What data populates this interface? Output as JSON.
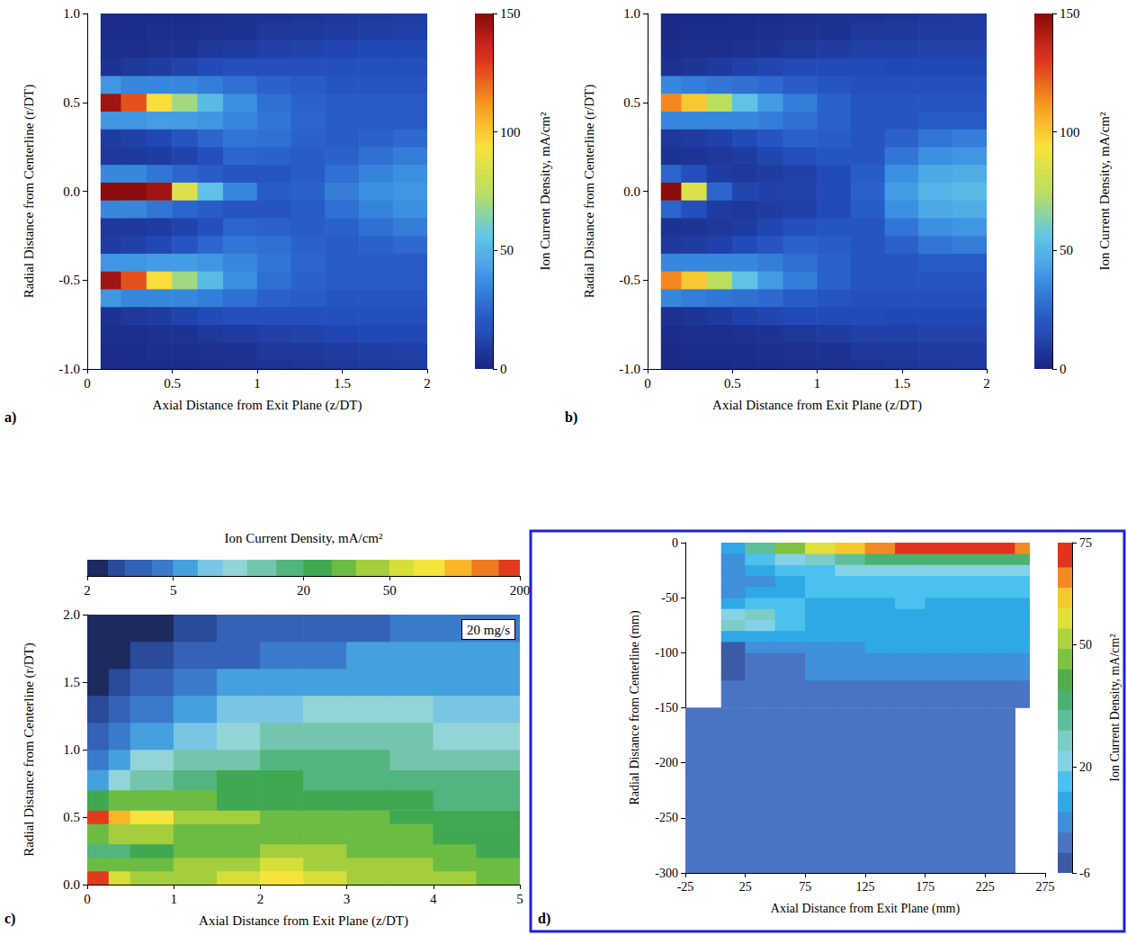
{
  "chart_data": [
    {
      "type": "heatmap",
      "panel": "a)",
      "x_label": "Axial Distance from Exit Plane (z/DT)",
      "y_label": "Radial Distance from Centerline (r/DT)",
      "xlim": [
        0,
        2
      ],
      "ylim": [
        -1,
        1
      ],
      "xticks": [
        0,
        0.5,
        1,
        1.5,
        2
      ],
      "yticks": [
        {
          "value": -1,
          "label": "-1.0"
        },
        -0.5,
        {
          "value": 0,
          "label": "0.0"
        },
        0.5,
        {
          "value": 1,
          "label": "1.0"
        }
      ],
      "x_edges": [
        0.08,
        0.2,
        0.35,
        0.5,
        0.65,
        0.8,
        1.0,
        1.2,
        1.4,
        1.6,
        1.8,
        2.0
      ],
      "y_edges": [
        -1,
        -0.95,
        -0.85,
        -0.75,
        -0.65,
        -0.55,
        -0.45,
        -0.35,
        -0.25,
        -0.15,
        -0.05,
        0.05,
        0.15,
        0.25,
        0.35,
        0.45,
        0.55,
        0.65,
        0.75,
        0.85,
        0.95,
        1
      ],
      "z": [
        [
          3,
          3,
          3,
          3,
          4,
          5,
          6,
          7,
          8,
          9,
          10
        ],
        [
          3,
          3,
          4,
          4,
          5,
          6,
          8,
          9,
          10,
          11,
          12
        ],
        [
          4,
          4,
          5,
          6,
          8,
          10,
          12,
          13,
          14,
          15,
          15
        ],
        [
          6,
          8,
          10,
          13,
          16,
          18,
          18,
          18,
          18,
          18,
          18
        ],
        [
          40,
          35,
          35,
          35,
          32,
          28,
          24,
          22,
          20,
          20,
          20
        ],
        [
          145,
          125,
          95,
          70,
          52,
          38,
          28,
          24,
          22,
          22,
          22
        ],
        [
          40,
          40,
          42,
          42,
          40,
          35,
          30,
          25,
          22,
          22,
          22
        ],
        [
          10,
          12,
          15,
          20,
          25,
          30,
          28,
          24,
          22,
          24,
          26
        ],
        [
          8,
          9,
          10,
          13,
          18,
          25,
          24,
          22,
          24,
          28,
          32
        ],
        [
          35,
          35,
          30,
          25,
          22,
          20,
          20,
          22,
          28,
          34,
          38
        ],
        [
          150,
          150,
          145,
          85,
          55,
          35,
          22,
          24,
          32,
          38,
          40
        ],
        [
          35,
          35,
          30,
          25,
          22,
          20,
          20,
          22,
          28,
          34,
          38
        ],
        [
          8,
          9,
          10,
          13,
          18,
          25,
          24,
          22,
          24,
          28,
          32
        ],
        [
          10,
          12,
          15,
          20,
          25,
          30,
          28,
          24,
          22,
          24,
          26
        ],
        [
          40,
          40,
          42,
          42,
          40,
          35,
          30,
          25,
          22,
          22,
          22
        ],
        [
          145,
          125,
          95,
          70,
          52,
          38,
          28,
          24,
          22,
          22,
          22
        ],
        [
          40,
          35,
          35,
          35,
          32,
          28,
          24,
          22,
          20,
          20,
          20
        ],
        [
          6,
          8,
          10,
          13,
          16,
          18,
          18,
          18,
          18,
          18,
          18
        ],
        [
          4,
          4,
          5,
          6,
          8,
          10,
          12,
          13,
          14,
          15,
          15
        ],
        [
          3,
          3,
          4,
          4,
          5,
          6,
          8,
          9,
          10,
          11,
          12
        ],
        [
          3,
          3,
          3,
          3,
          4,
          5,
          6,
          7,
          8,
          9,
          10
        ]
      ],
      "colorbar": {
        "label": "Ion Current Density, mA/cm²",
        "range": [
          0,
          150
        ],
        "ticks": [
          0,
          50,
          100,
          150
        ],
        "colors": [
          "#1a2580",
          "#2451c0",
          "#3b8fe3",
          "#62c6e6",
          "#b9df5c",
          "#f9e23c",
          "#f6951e",
          "#dc2e1d",
          "#8a0c0c"
        ]
      }
    },
    {
      "type": "heatmap",
      "panel": "b)",
      "x_label": "Axial Distance from Exit Plane (z/DT)",
      "y_label": "Radial Distance from Centerline (r/DT)",
      "xlim": [
        0,
        2
      ],
      "ylim": [
        -1,
        1
      ],
      "xticks": [
        0,
        0.5,
        1,
        1.5,
        2
      ],
      "yticks": [
        {
          "value": -1,
          "label": "-1.0"
        },
        -0.5,
        {
          "value": 0,
          "label": "0.0"
        },
        0.5,
        {
          "value": 1,
          "label": "1.0"
        }
      ],
      "x_edges": [
        0.08,
        0.2,
        0.35,
        0.5,
        0.65,
        0.8,
        1.0,
        1.2,
        1.4,
        1.6,
        1.8,
        2.0
      ],
      "y_edges": [
        -1,
        -0.95,
        -0.85,
        -0.75,
        -0.65,
        -0.55,
        -0.45,
        -0.35,
        -0.25,
        -0.15,
        -0.05,
        0.05,
        0.15,
        0.25,
        0.35,
        0.45,
        0.55,
        0.65,
        0.75,
        0.85,
        0.95,
        1
      ],
      "z": [
        [
          2,
          2,
          2,
          3,
          3,
          4,
          5,
          6,
          7,
          8,
          9
        ],
        [
          2,
          3,
          3,
          3,
          4,
          5,
          6,
          8,
          9,
          10,
          10
        ],
        [
          3,
          4,
          4,
          5,
          6,
          8,
          10,
          12,
          12,
          13,
          13
        ],
        [
          5,
          7,
          9,
          12,
          14,
          16,
          16,
          16,
          15,
          15,
          15
        ],
        [
          35,
          32,
          30,
          28,
          26,
          22,
          20,
          18,
          18,
          18,
          18
        ],
        [
          115,
          100,
          75,
          55,
          42,
          32,
          24,
          20,
          20,
          20,
          20
        ],
        [
          35,
          35,
          35,
          35,
          32,
          28,
          24,
          20,
          20,
          22,
          22
        ],
        [
          8,
          10,
          12,
          16,
          20,
          24,
          22,
          20,
          24,
          30,
          32
        ],
        [
          6,
          7,
          8,
          10,
          14,
          18,
          20,
          20,
          30,
          38,
          40
        ],
        [
          25,
          18,
          10,
          8,
          10,
          12,
          16,
          22,
          38,
          46,
          48
        ],
        [
          150,
          85,
          25,
          14,
          12,
          13,
          16,
          24,
          42,
          50,
          52
        ],
        [
          25,
          18,
          10,
          8,
          10,
          12,
          16,
          22,
          38,
          46,
          48
        ],
        [
          6,
          7,
          8,
          10,
          14,
          18,
          20,
          20,
          30,
          38,
          40
        ],
        [
          8,
          10,
          12,
          16,
          20,
          24,
          22,
          20,
          24,
          30,
          32
        ],
        [
          35,
          35,
          35,
          35,
          32,
          28,
          24,
          20,
          20,
          22,
          22
        ],
        [
          115,
          100,
          75,
          55,
          42,
          32,
          24,
          20,
          20,
          20,
          20
        ],
        [
          35,
          32,
          30,
          28,
          26,
          22,
          20,
          18,
          18,
          18,
          18
        ],
        [
          5,
          7,
          9,
          12,
          14,
          16,
          16,
          16,
          15,
          15,
          15
        ],
        [
          3,
          4,
          4,
          5,
          6,
          8,
          10,
          12,
          12,
          13,
          13
        ],
        [
          2,
          3,
          3,
          3,
          4,
          5,
          6,
          8,
          9,
          10,
          10
        ],
        [
          2,
          2,
          2,
          3,
          3,
          4,
          5,
          6,
          7,
          8,
          9
        ]
      ],
      "colorbar": {
        "label": "Ion Current Density, mA/cm²",
        "range": [
          0,
          150
        ],
        "ticks": [
          0,
          50,
          100,
          150
        ],
        "colors": [
          "#1a2580",
          "#2451c0",
          "#3b8fe3",
          "#62c6e6",
          "#b9df5c",
          "#f9e23c",
          "#f6951e",
          "#dc2e1d",
          "#8a0c0c"
        ]
      }
    },
    {
      "type": "heatmap",
      "panel": "c)",
      "x_label": "Axial Distance from Exit Plane (z/DT)",
      "y_label": "Radial Distance from Centerline (r/DT)",
      "annotation": "20 mg/s",
      "xlim": [
        0,
        5
      ],
      "ylim": [
        0,
        2
      ],
      "xticks": [
        0,
        1,
        2,
        3,
        4,
        5
      ],
      "yticks": [
        {
          "value": 0,
          "label": "0.0"
        },
        0.5,
        {
          "value": 1,
          "label": "1.0"
        },
        1.5,
        {
          "value": 2,
          "label": "2.0"
        }
      ],
      "x_edges": [
        0,
        0.25,
        0.5,
        1,
        1.5,
        2,
        2.5,
        3,
        3.5,
        4,
        4.5,
        5
      ],
      "y_edges": [
        0,
        0.1,
        0.2,
        0.3,
        0.45,
        0.55,
        0.7,
        0.85,
        1,
        1.2,
        1.4,
        1.6,
        1.8,
        2
      ],
      "z": [
        [
          180,
          60,
          40,
          45,
          60,
          70,
          55,
          45,
          40,
          35,
          30
        ],
        [
          30,
          30,
          30,
          35,
          45,
          50,
          45,
          40,
          35,
          30,
          28
        ],
        [
          15,
          18,
          22,
          28,
          32,
          35,
          35,
          32,
          30,
          28,
          25
        ],
        [
          30,
          35,
          35,
          30,
          30,
          30,
          30,
          28,
          27,
          25,
          22
        ],
        [
          180,
          90,
          65,
          45,
          38,
          33,
          30,
          28,
          25,
          23,
          21
        ],
        [
          25,
          30,
          30,
          28,
          26,
          25,
          24,
          22,
          20,
          19,
          18
        ],
        [
          6,
          10,
          14,
          18,
          20,
          20,
          19,
          18,
          17,
          16,
          15
        ],
        [
          4,
          6,
          9,
          12,
          14,
          15,
          15,
          15,
          14,
          13,
          12
        ],
        [
          3,
          4,
          6,
          8,
          10,
          11,
          11,
          11,
          11,
          10,
          10
        ],
        [
          2.5,
          3,
          4,
          5,
          7,
          8,
          9,
          9,
          9,
          8,
          8
        ],
        [
          2.2,
          2.5,
          3,
          4,
          5,
          6,
          6,
          6,
          6,
          6,
          6
        ],
        [
          2,
          2,
          2.5,
          3,
          3.5,
          4,
          4,
          5,
          5,
          5,
          5
        ],
        [
          2,
          2,
          2,
          2.5,
          3,
          3,
          3.5,
          3.5,
          4,
          4,
          4
        ]
      ],
      "colorbar": {
        "label": "Ion Current Density, mA/cm²",
        "log": true,
        "range": [
          2,
          200
        ],
        "ticks": [
          2,
          5,
          20,
          50,
          200
        ],
        "levels": [
          2,
          2.5,
          3,
          4,
          5,
          6.5,
          8.5,
          11,
          15,
          20,
          27,
          35,
          50,
          65,
          90,
          120,
          160,
          200
        ],
        "colors": [
          "#1d2a5e",
          "#2a4a9a",
          "#3462b6",
          "#3a7acb",
          "#45a0de",
          "#79c6e4",
          "#93d5d6",
          "#73c6ad",
          "#52b47e",
          "#3fa851",
          "#6cbb43",
          "#a4ce3c",
          "#d6df39",
          "#f6e43a",
          "#f8b628",
          "#ef7a22",
          "#e23a1e"
        ]
      }
    },
    {
      "type": "heatmap",
      "panel": "d)",
      "x_label": "Axial Distance from Exit Plane (mm)",
      "y_label": "Radial Distance from Centerline (mm)",
      "xlim": [
        -25,
        275
      ],
      "ylim": [
        -300,
        0
      ],
      "xticks": [
        -25,
        25,
        75,
        125,
        175,
        225,
        275
      ],
      "yticks": [
        -300,
        -250,
        -200,
        -150,
        -100,
        -50,
        0
      ],
      "x_edges": [
        -25,
        5,
        25,
        50,
        75,
        100,
        125,
        150,
        175,
        200,
        225,
        250,
        262
      ],
      "y_edges": [
        -300,
        -250,
        -200,
        -150,
        -125,
        -100,
        -90,
        -80,
        -70,
        -60,
        -50,
        -40,
        -30,
        -20,
        -10,
        0
      ],
      "z": [
        [
          2,
          2,
          2,
          2,
          2,
          2,
          2,
          2,
          2,
          2,
          2,
          null
        ],
        [
          2,
          2,
          2,
          2,
          2,
          2,
          2,
          2,
          2,
          2,
          2,
          null
        ],
        [
          2,
          2,
          2,
          2,
          2,
          2,
          2,
          2,
          2,
          2,
          2,
          null
        ],
        [
          null,
          2,
          2,
          2,
          2,
          2,
          2,
          2,
          2,
          2,
          2,
          2
        ],
        [
          null,
          -4,
          2,
          3,
          4,
          4,
          5,
          5,
          6,
          6,
          6,
          6
        ],
        [
          null,
          -2,
          5,
          7,
          8,
          8,
          9,
          9,
          9,
          9,
          9,
          9
        ],
        [
          null,
          10,
          12,
          10,
          10,
          10,
          10,
          10,
          10,
          10,
          10,
          10
        ],
        [
          null,
          25,
          22,
          14,
          11,
          11,
          11,
          11,
          11,
          11,
          11,
          11
        ],
        [
          null,
          22,
          28,
          16,
          12,
          12,
          12,
          12,
          12,
          12,
          12,
          12
        ],
        [
          null,
          12,
          18,
          15,
          13,
          13,
          13,
          14,
          13,
          13,
          13,
          13
        ],
        [
          null,
          6,
          10,
          12,
          14,
          15,
          15,
          15,
          15,
          15,
          15,
          15
        ],
        [
          null,
          5,
          8,
          12,
          15,
          16,
          16,
          16,
          16,
          16,
          16,
          16
        ],
        [
          null,
          6,
          10,
          15,
          18,
          20,
          22,
          22,
          22,
          22,
          22,
          22
        ],
        [
          null,
          8,
          15,
          22,
          28,
          32,
          36,
          38,
          38,
          38,
          38,
          38
        ],
        [
          null,
          12,
          30,
          45,
          55,
          62,
          68,
          72,
          74,
          75,
          72,
          65
        ]
      ],
      "colorbar": {
        "label": "Ion Current Density, mA/cm²",
        "range": [
          -6,
          75
        ],
        "ticks": [
          -6,
          20,
          50,
          75
        ],
        "levels": [
          -6,
          -1,
          4,
          9,
          14,
          19,
          24,
          29,
          34,
          39,
          44,
          49,
          54,
          59,
          64,
          69,
          75
        ],
        "colors": [
          "#3b5ba5",
          "#4a74c2",
          "#3f8fda",
          "#2fa8e6",
          "#4cc0ee",
          "#85d2e6",
          "#7dccc6",
          "#5dbf9b",
          "#4cb170",
          "#53ae4a",
          "#7fc142",
          "#b0d23d",
          "#dfe03a",
          "#f5c92e",
          "#f28b24",
          "#e2331f"
        ]
      }
    }
  ]
}
